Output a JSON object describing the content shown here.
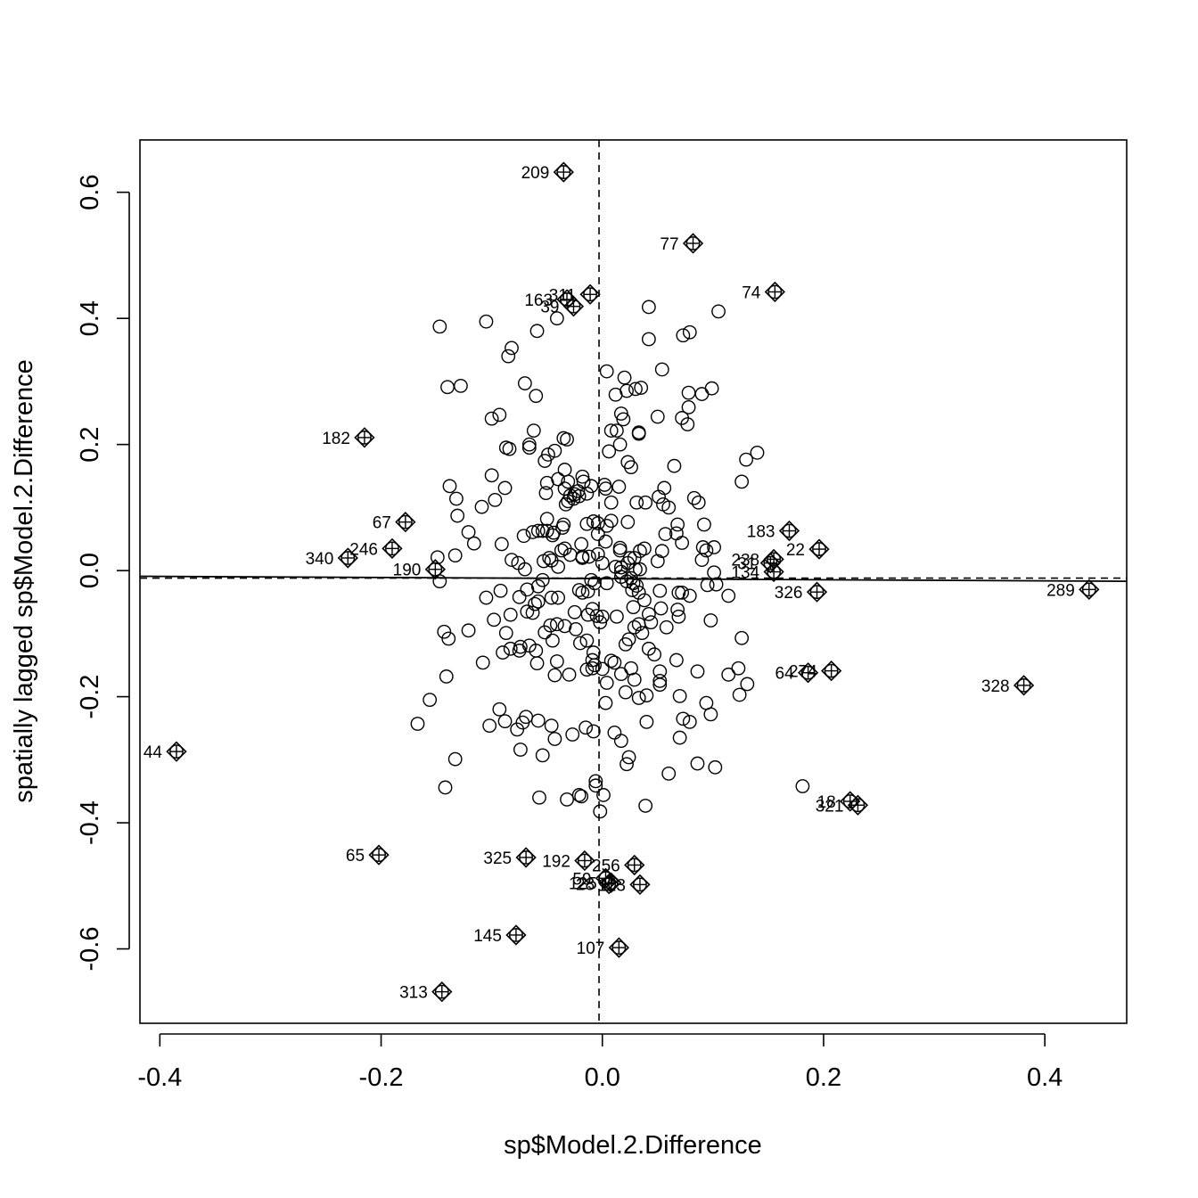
{
  "chart_data": {
    "type": "scatter",
    "title": "",
    "xlabel": "sp$Model.2.Difference",
    "ylabel": "spatially lagged sp$Model.2.Difference",
    "xlim": [
      -0.418,
      0.474
    ],
    "ylim": [
      -0.718,
      0.683
    ],
    "x_ticks": [
      {
        "value": -0.4,
        "label": "-0.4"
      },
      {
        "value": -0.2,
        "label": "-0.2"
      },
      {
        "value": 0.0,
        "label": "0.0"
      },
      {
        "value": 0.2,
        "label": "0.2"
      },
      {
        "value": 0.4,
        "label": "0.4"
      }
    ],
    "y_ticks": [
      {
        "value": -0.6,
        "label": "-0.6"
      },
      {
        "value": -0.4,
        "label": "-0.4"
      },
      {
        "value": -0.2,
        "label": "-0.2"
      },
      {
        "value": 0.0,
        "label": "0.0"
      },
      {
        "value": 0.2,
        "label": "0.2"
      },
      {
        "value": 0.4,
        "label": "0.4"
      },
      {
        "value": 0.6,
        "label": "0.6"
      }
    ],
    "mean_x": -0.003,
    "mean_y": -0.012,
    "regression": {
      "x0": -0.418,
      "y0": -0.009,
      "x1": 0.474,
      "y1": -0.017
    },
    "influential_points": [
      {
        "x": -0.035,
        "y": 0.632,
        "label": "209"
      },
      {
        "x": 0.082,
        "y": 0.519,
        "label": "77"
      },
      {
        "x": 0.156,
        "y": 0.442,
        "label": "74"
      },
      {
        "x": -0.011,
        "y": 0.438,
        "label": "311"
      },
      {
        "x": -0.032,
        "y": 0.43,
        "label": "163"
      },
      {
        "x": -0.026,
        "y": 0.419,
        "label": "39"
      },
      {
        "x": -0.215,
        "y": 0.211,
        "label": "182"
      },
      {
        "x": -0.178,
        "y": 0.077,
        "label": "67"
      },
      {
        "x": -0.19,
        "y": 0.035,
        "label": "246"
      },
      {
        "x": -0.23,
        "y": 0.02,
        "label": "340"
      },
      {
        "x": -0.151,
        "y": 0.002,
        "label": "190"
      },
      {
        "x": 0.169,
        "y": 0.063,
        "label": "183"
      },
      {
        "x": 0.196,
        "y": 0.034,
        "label": "22"
      },
      {
        "x": 0.155,
        "y": 0.018,
        "label": "238"
      },
      {
        "x": 0.152,
        "y": 0.012,
        "label": "31"
      },
      {
        "x": 0.155,
        "y": -0.002,
        "label": "134"
      },
      {
        "x": 0.194,
        "y": -0.034,
        "label": "326"
      },
      {
        "x": 0.44,
        "y": -0.03,
        "label": "289"
      },
      {
        "x": 0.186,
        "y": -0.162,
        "label": "64"
      },
      {
        "x": 0.207,
        "y": -0.159,
        "label": "274"
      },
      {
        "x": 0.381,
        "y": -0.182,
        "label": "328"
      },
      {
        "x": -0.385,
        "y": -0.287,
        "label": "44"
      },
      {
        "x": 0.224,
        "y": -0.366,
        "label": "18"
      },
      {
        "x": 0.231,
        "y": -0.372,
        "label": "321"
      },
      {
        "x": -0.202,
        "y": -0.451,
        "label": "65"
      },
      {
        "x": -0.069,
        "y": -0.455,
        "label": "325"
      },
      {
        "x": -0.016,
        "y": -0.46,
        "label": "192"
      },
      {
        "x": 0.029,
        "y": -0.467,
        "label": "256"
      },
      {
        "x": 0.003,
        "y": -0.488,
        "label": "59"
      },
      {
        "x": 0.006,
        "y": -0.497,
        "label": "28"
      },
      {
        "x": 0.008,
        "y": -0.495,
        "label": "125"
      },
      {
        "x": 0.034,
        "y": -0.498,
        "label": "123"
      },
      {
        "x": -0.078,
        "y": -0.578,
        "label": "145"
      },
      {
        "x": 0.015,
        "y": -0.598,
        "label": "107"
      },
      {
        "x": -0.145,
        "y": -0.668,
        "label": "313"
      }
    ],
    "points": [
      [
        -0.147,
        0.387
      ],
      [
        -0.105,
        0.395
      ],
      [
        -0.082,
        0.353
      ],
      [
        -0.085,
        0.34
      ],
      [
        -0.059,
        0.38
      ],
      [
        -0.041,
        0.4
      ],
      [
        0.042,
        0.418
      ],
      [
        0.105,
        0.411
      ],
      [
        0.042,
        0.367
      ],
      [
        0.073,
        0.373
      ],
      [
        0.079,
        0.378
      ],
      [
        -0.14,
        0.291
      ],
      [
        -0.128,
        0.293
      ],
      [
        -0.07,
        0.297
      ],
      [
        -0.06,
        0.277
      ],
      [
        0.004,
        0.316
      ],
      [
        0.054,
        0.319
      ],
      [
        0.02,
        0.306
      ],
      [
        0.012,
        0.279
      ],
      [
        0.022,
        0.285
      ],
      [
        0.03,
        0.288
      ],
      [
        0.035,
        0.29
      ],
      [
        0.099,
        0.289
      ],
      [
        0.078,
        0.282
      ],
      [
        0.09,
        0.28
      ],
      [
        0.078,
        0.259
      ],
      [
        -0.1,
        0.241
      ],
      [
        -0.093,
        0.247
      ],
      [
        -0.062,
        0.222
      ],
      [
        0.017,
        0.249
      ],
      [
        0.019,
        0.24
      ],
      [
        0.05,
        0.244
      ],
      [
        0.072,
        0.242
      ],
      [
        0.077,
        0.232
      ],
      [
        -0.087,
        0.195
      ],
      [
        -0.084,
        0.193
      ],
      [
        -0.066,
        0.2
      ],
      [
        -0.066,
        0.195
      ],
      [
        -0.035,
        0.21
      ],
      [
        -0.032,
        0.208
      ],
      [
        -0.043,
        0.19
      ],
      [
        -0.049,
        0.184
      ],
      [
        -0.052,
        0.174
      ],
      [
        0.008,
        0.222
      ],
      [
        0.013,
        0.222
      ],
      [
        0.033,
        0.219
      ],
      [
        0.033,
        0.217
      ],
      [
        0.016,
        0.2
      ],
      [
        0.006,
        0.189
      ],
      [
        0.023,
        0.172
      ],
      [
        0.026,
        0.164
      ],
      [
        0.14,
        0.187
      ],
      [
        0.13,
        0.176
      ],
      [
        0.065,
        0.166
      ],
      [
        0.126,
        0.141
      ],
      [
        -0.1,
        0.151
      ],
      [
        -0.088,
        0.131
      ],
      [
        -0.097,
        0.112
      ],
      [
        -0.138,
        0.134
      ],
      [
        -0.132,
        0.114
      ],
      [
        -0.109,
        0.101
      ],
      [
        -0.131,
        0.087
      ],
      [
        -0.034,
        0.16
      ],
      [
        -0.04,
        0.145
      ],
      [
        -0.031,
        0.141
      ],
      [
        -0.018,
        0.149
      ],
      [
        -0.017,
        0.141
      ],
      [
        -0.034,
        0.13
      ],
      [
        -0.025,
        0.121
      ],
      [
        -0.021,
        0.118
      ],
      [
        -0.029,
        0.119
      ],
      [
        -0.026,
        0.114
      ],
      [
        -0.031,
        0.11
      ],
      [
        -0.033,
        0.105
      ],
      [
        -0.022,
        0.126
      ],
      [
        -0.014,
        0.122
      ],
      [
        -0.05,
        0.139
      ],
      [
        -0.051,
        0.123
      ],
      [
        -0.01,
        0.134
      ],
      [
        0.002,
        0.136
      ],
      [
        0.003,
        0.13
      ],
      [
        0.015,
        0.133
      ],
      [
        0.008,
        0.108
      ],
      [
        0.031,
        0.108
      ],
      [
        0.039,
        0.108
      ],
      [
        0.051,
        0.117
      ],
      [
        0.056,
        0.131
      ],
      [
        0.055,
        0.105
      ],
      [
        0.06,
        0.1
      ],
      [
        0.083,
        0.115
      ],
      [
        0.087,
        0.108
      ],
      [
        -0.121,
        0.061
      ],
      [
        -0.116,
        0.043
      ],
      [
        -0.133,
        0.024
      ],
      [
        -0.091,
        0.042
      ],
      [
        -0.082,
        0.017
      ],
      [
        -0.071,
        0.055
      ],
      [
        -0.063,
        0.061
      ],
      [
        -0.058,
        0.063
      ],
      [
        -0.054,
        0.063
      ],
      [
        -0.05,
        0.082
      ],
      [
        -0.05,
        0.063
      ],
      [
        -0.044,
        0.06
      ],
      [
        -0.045,
        0.056
      ],
      [
        -0.036,
        0.068
      ],
      [
        -0.035,
        0.073
      ],
      [
        -0.034,
        0.035
      ],
      [
        -0.037,
        0.032
      ],
      [
        -0.029,
        0.025
      ],
      [
        -0.019,
        0.042
      ],
      [
        -0.018,
        0.022
      ],
      [
        -0.014,
        0.074
      ],
      [
        -0.008,
        0.078
      ],
      [
        -0.004,
        0.075
      ],
      [
        -0.004,
        0.058
      ],
      [
        0.003,
        0.046
      ],
      [
        0.004,
        0.071
      ],
      [
        0.008,
        0.079
      ],
      [
        0.016,
        0.036
      ],
      [
        0.016,
        0.032
      ],
      [
        0.023,
        0.077
      ],
      [
        0.029,
        0.02
      ],
      [
        0.034,
        0.031
      ],
      [
        0.038,
        0.035
      ],
      [
        0.054,
        0.031
      ],
      [
        0.057,
        0.058
      ],
      [
        0.067,
        0.059
      ],
      [
        0.068,
        0.073
      ],
      [
        0.092,
        0.073
      ],
      [
        0.072,
        0.044
      ],
      [
        0.091,
        0.037
      ],
      [
        0.094,
        0.032
      ],
      [
        0.101,
        0.037
      ],
      [
        -0.149,
        0.021
      ],
      [
        -0.076,
        0.012
      ],
      [
        -0.07,
        0.002
      ],
      [
        -0.053,
        0.015
      ],
      [
        -0.048,
        0.02
      ],
      [
        -0.046,
        0.016
      ],
      [
        -0.04,
        0.006
      ],
      [
        -0.018,
        0.02
      ],
      [
        -0.012,
        0.022
      ],
      [
        -0.004,
        0.026
      ],
      [
        0.0,
        0.012
      ],
      [
        0.012,
        0.006
      ],
      [
        0.017,
        0.005
      ],
      [
        0.023,
        0.012
      ],
      [
        0.025,
        0.02
      ],
      [
        0.03,
        0.002
      ],
      [
        0.034,
        0.002
      ],
      [
        0.05,
        0.015
      ],
      [
        0.09,
        0.017
      ],
      [
        0.101,
        -0.003
      ],
      [
        -0.147,
        -0.017
      ],
      [
        -0.075,
        -0.042
      ],
      [
        -0.068,
        -0.03
      ],
      [
        -0.058,
        -0.025
      ],
      [
        -0.054,
        -0.015
      ],
      [
        -0.046,
        -0.043
      ],
      [
        -0.04,
        -0.043
      ],
      [
        -0.021,
        -0.031
      ],
      [
        -0.018,
        -0.035
      ],
      [
        -0.013,
        -0.033
      ],
      [
        -0.01,
        -0.015
      ],
      [
        -0.007,
        -0.02
      ],
      [
        0.004,
        -0.02
      ],
      [
        0.017,
        -0.002
      ],
      [
        0.017,
        -0.01
      ],
      [
        0.022,
        -0.017
      ],
      [
        0.026,
        -0.012
      ],
      [
        0.028,
        -0.02
      ],
      [
        0.031,
        -0.024
      ],
      [
        0.027,
        -0.031
      ],
      [
        0.033,
        -0.035
      ],
      [
        0.038,
        -0.047
      ],
      [
        0.052,
        -0.032
      ],
      [
        0.069,
        -0.035
      ],
      [
        0.072,
        -0.035
      ],
      [
        0.079,
        -0.04
      ],
      [
        0.095,
        -0.023
      ],
      [
        0.103,
        -0.022
      ],
      [
        0.114,
        -0.04
      ],
      [
        -0.105,
        -0.043
      ],
      [
        -0.098,
        -0.078
      ],
      [
        -0.092,
        -0.032
      ],
      [
        -0.087,
        -0.099
      ],
      [
        -0.083,
        -0.07
      ],
      [
        -0.074,
        -0.121
      ],
      [
        -0.068,
        -0.065
      ],
      [
        -0.063,
        -0.067
      ],
      [
        -0.061,
        -0.053
      ],
      [
        -0.058,
        -0.049
      ],
      [
        -0.052,
        -0.098
      ],
      [
        -0.047,
        -0.087
      ],
      [
        -0.041,
        -0.085
      ],
      [
        -0.034,
        -0.088
      ],
      [
        -0.025,
        -0.066
      ],
      [
        -0.024,
        -0.093
      ],
      [
        -0.02,
        -0.115
      ],
      [
        -0.013,
        -0.07
      ],
      [
        -0.009,
        -0.061
      ],
      [
        -0.005,
        -0.072
      ],
      [
        -0.002,
        -0.082
      ],
      [
        0.0,
        -0.073
      ],
      [
        0.013,
        -0.073
      ],
      [
        0.028,
        -0.058
      ],
      [
        0.033,
        -0.085
      ],
      [
        0.036,
        -0.099
      ],
      [
        0.042,
        -0.069
      ],
      [
        0.044,
        -0.082
      ],
      [
        0.053,
        -0.06
      ],
      [
        0.058,
        -0.09
      ],
      [
        0.068,
        -0.062
      ],
      [
        0.069,
        -0.073
      ],
      [
        0.098,
        -0.079
      ],
      [
        0.126,
        -0.107
      ],
      [
        -0.143,
        -0.097
      ],
      [
        -0.139,
        -0.108
      ],
      [
        -0.121,
        -0.095
      ],
      [
        -0.09,
        -0.13
      ],
      [
        -0.083,
        -0.124
      ],
      [
        -0.075,
        -0.127
      ],
      [
        -0.066,
        -0.119
      ],
      [
        -0.06,
        -0.127
      ],
      [
        -0.045,
        -0.111
      ],
      [
        -0.014,
        -0.111
      ],
      [
        -0.008,
        -0.13
      ],
      [
        0.008,
        -0.143
      ],
      [
        0.011,
        -0.146
      ],
      [
        0.021,
        -0.117
      ],
      [
        0.024,
        -0.109
      ],
      [
        0.029,
        -0.09
      ],
      [
        0.042,
        -0.124
      ],
      [
        0.047,
        -0.133
      ],
      [
        -0.108,
        -0.146
      ],
      [
        -0.059,
        -0.147
      ],
      [
        -0.041,
        -0.144
      ],
      [
        -0.043,
        -0.166
      ],
      [
        -0.03,
        -0.165
      ],
      [
        -0.009,
        -0.142
      ],
      [
        -0.007,
        -0.15
      ],
      [
        -0.009,
        -0.155
      ],
      [
        -0.014,
        -0.157
      ],
      [
        0.0,
        -0.156
      ],
      [
        0.017,
        -0.164
      ],
      [
        0.026,
        -0.155
      ],
      [
        0.029,
        -0.173
      ],
      [
        0.052,
        -0.16
      ],
      [
        0.052,
        -0.175
      ],
      [
        0.067,
        -0.142
      ],
      [
        0.086,
        -0.16
      ],
      [
        0.114,
        -0.165
      ],
      [
        0.123,
        -0.155
      ],
      [
        -0.141,
        -0.168
      ],
      [
        -0.156,
        -0.205
      ],
      [
        -0.167,
        -0.243
      ],
      [
        0.004,
        -0.178
      ],
      [
        0.003,
        -0.21
      ],
      [
        0.021,
        -0.193
      ],
      [
        0.033,
        -0.202
      ],
      [
        0.04,
        -0.198
      ],
      [
        0.052,
        -0.181
      ],
      [
        0.07,
        -0.199
      ],
      [
        0.094,
        -0.21
      ],
      [
        0.124,
        -0.197
      ],
      [
        0.131,
        -0.18
      ],
      [
        -0.093,
        -0.22
      ],
      [
        -0.102,
        -0.246
      ],
      [
        -0.088,
        -0.239
      ],
      [
        -0.077,
        -0.252
      ],
      [
        -0.072,
        -0.241
      ],
      [
        -0.069,
        -0.232
      ],
      [
        -0.058,
        -0.238
      ],
      [
        -0.046,
        -0.246
      ],
      [
        -0.015,
        -0.249
      ],
      [
        -0.008,
        -0.255
      ],
      [
        0.011,
        -0.257
      ],
      [
        0.017,
        -0.27
      ],
      [
        0.04,
        -0.24
      ],
      [
        0.07,
        -0.265
      ],
      [
        0.073,
        -0.235
      ],
      [
        0.079,
        -0.24
      ],
      [
        0.098,
        -0.228
      ],
      [
        -0.043,
        -0.267
      ],
      [
        -0.027,
        -0.26
      ],
      [
        -0.074,
        -0.284
      ],
      [
        -0.133,
        -0.299
      ],
      [
        -0.054,
        -0.293
      ],
      [
        0.024,
        -0.296
      ],
      [
        0.022,
        -0.307
      ],
      [
        0.06,
        -0.322
      ],
      [
        0.086,
        -0.306
      ],
      [
        0.102,
        -0.312
      ],
      [
        -0.142,
        -0.344
      ],
      [
        -0.057,
        -0.36
      ],
      [
        -0.032,
        -0.363
      ],
      [
        -0.021,
        -0.356
      ],
      [
        -0.019,
        -0.358
      ],
      [
        -0.006,
        -0.334
      ],
      [
        -0.006,
        -0.341
      ],
      [
        0.001,
        -0.356
      ],
      [
        0.039,
        -0.373
      ],
      [
        -0.002,
        -0.382
      ],
      [
        0.181,
        -0.342
      ]
    ]
  }
}
